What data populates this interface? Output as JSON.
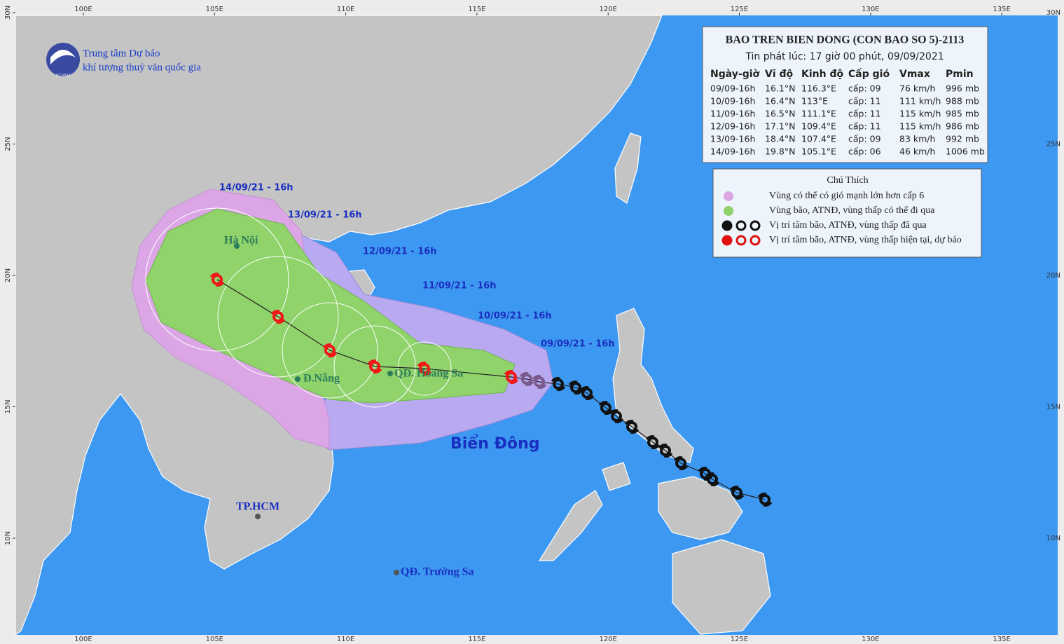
{
  "header": {
    "title": "BAO TREN BIEN DONG (CON BAO SO 5)-2113",
    "subtitle": "Tin phát lúc: 17 giờ 00 phút, 09/09/2021",
    "table": {
      "columns": [
        "Ngày-giờ",
        "Vĩ độ",
        "Kinh độ",
        "Cấp gió",
        "Vmax",
        "Pmin"
      ],
      "rows": [
        [
          "09/09-16h",
          "16.1°N",
          "116.3°E",
          "cấp: 09",
          "76 km/h",
          "996 mb"
        ],
        [
          "10/09-16h",
          "16.4°N",
          "113°E",
          "cấp: 11",
          "111 km/h",
          "988 mb"
        ],
        [
          "11/09-16h",
          "16.5°N",
          "111.1°E",
          "cấp: 11",
          "115 km/h",
          "985 mb"
        ],
        [
          "12/09-16h",
          "17.1°N",
          "109.4°E",
          "cấp: 11",
          "115 km/h",
          "986 mb"
        ],
        [
          "13/09-16h",
          "18.4°N",
          "107.4°E",
          "cấp: 09",
          "83 km/h",
          "992 mb"
        ],
        [
          "14/09-16h",
          "19.8°N",
          "105.1°E",
          "cấp: 06",
          "46 km/h",
          "1006 mb"
        ]
      ]
    }
  },
  "legend": {
    "title": "Chú Thích",
    "items": [
      "Vùng có thể có gió mạnh lớn hơn cấp 6",
      "Vùng bão, ATNĐ, vùng thấp có thể đi qua",
      "Vị trí tâm bão, ATNĐ, vùng thấp đã qua",
      "Vị trí tâm bão, ATNĐ, vùng thấp hiện tại, dự báo"
    ]
  },
  "logo": {
    "abbr": "NCHMF",
    "lines": [
      "Trung tâm Dự báo",
      "khí tượng thuỷ văn quốc gia"
    ]
  },
  "map": {
    "lon_ticks": [
      {
        "value": 100,
        "label": "100E"
      },
      {
        "value": 105,
        "label": "105E"
      },
      {
        "value": 110,
        "label": "110E"
      },
      {
        "value": 115,
        "label": "115E"
      },
      {
        "value": 120,
        "label": "120E"
      },
      {
        "value": 125,
        "label": "125E"
      },
      {
        "value": 130,
        "label": "130E"
      },
      {
        "value": 135,
        "label": "135E"
      }
    ],
    "lat_ticks": [
      {
        "value": 10,
        "label": "10N"
      },
      {
        "value": 15,
        "label": "15N"
      },
      {
        "value": 20,
        "label": "20N"
      },
      {
        "value": 25,
        "label": "25N"
      },
      {
        "value": 30,
        "label": "30N"
      }
    ],
    "track_labels": [
      "14/09/21 - 16h",
      "13/09/21 - 16h",
      "12/09/21 - 16h",
      "11/09/21 - 16h",
      "10/09/21 - 16h",
      "09/09/21 - 16h"
    ],
    "places": [
      "Hà Nội",
      "Đ.Nẵng",
      "QĐ. Hoàng Sa",
      "TP.HCM",
      "QĐ. Trường Sa"
    ],
    "sea_label": "Biển Đông"
  }
}
